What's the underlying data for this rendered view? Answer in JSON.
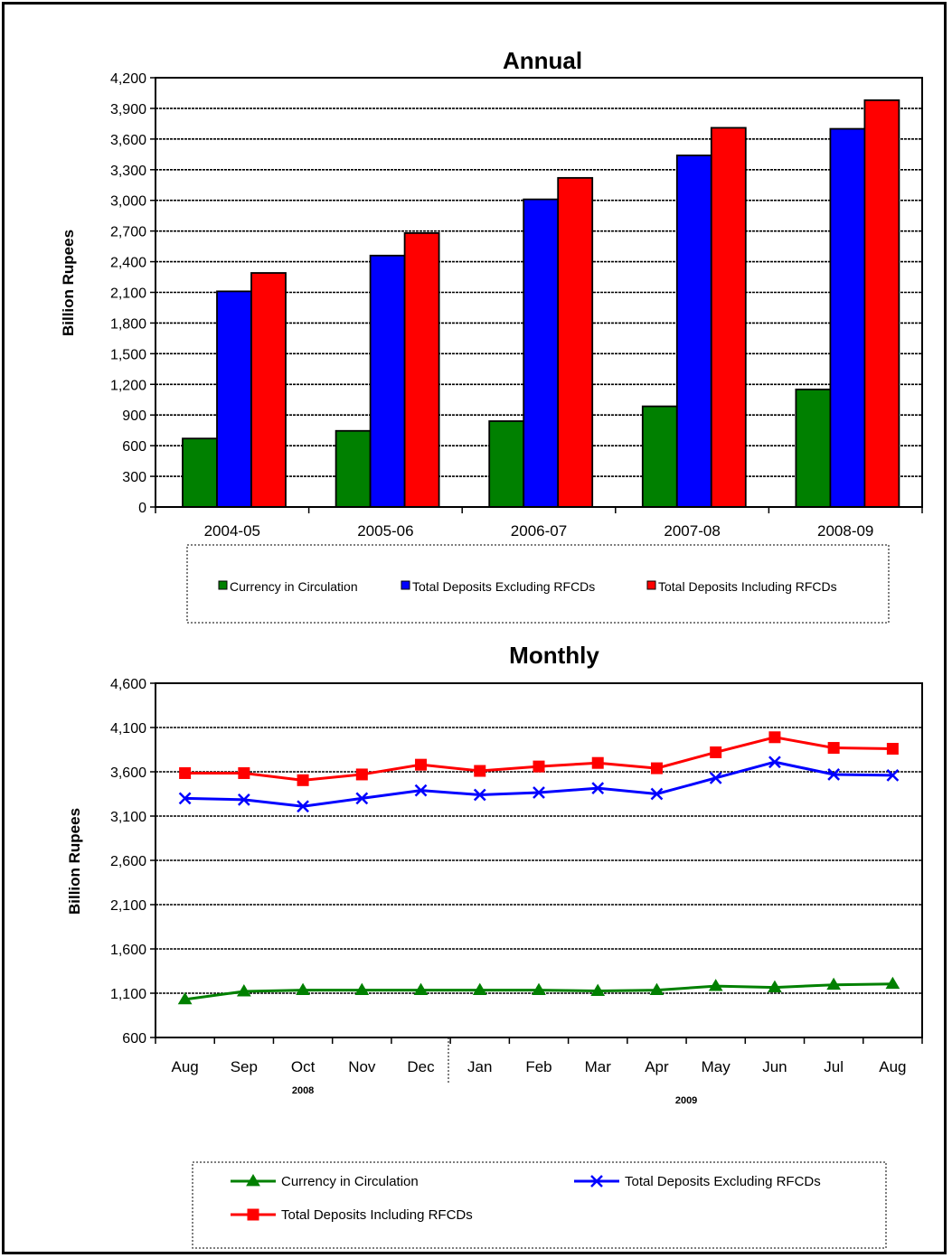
{
  "chart_data": [
    {
      "type": "bar",
      "title": "Annual",
      "ylabel": "Billion Rupees",
      "xlabel": "",
      "ylim": [
        0,
        4200
      ],
      "yticks": [
        0,
        300,
        600,
        900,
        1200,
        1500,
        1800,
        2100,
        2400,
        2700,
        3000,
        3300,
        3600,
        3900,
        4200
      ],
      "ytick_labels": [
        "0",
        "300",
        "600",
        "900",
        "1,200",
        "1,500",
        "1,800",
        "2,100",
        "2,400",
        "2,700",
        "3,000",
        "3,300",
        "3,600",
        "3,900",
        "4,200"
      ],
      "grid": true,
      "legend_position": "bottom",
      "categories": [
        "2004-05",
        "2005-06",
        "2006-07",
        "2007-08",
        "2008-09"
      ],
      "series": [
        {
          "name": "Currency in Circulation",
          "color": "#008000",
          "values": [
            670,
            745,
            840,
            985,
            1150
          ]
        },
        {
          "name": "Total Deposits Excluding RFCDs",
          "color": "#0000ff",
          "values": [
            2110,
            2460,
            3010,
            3440,
            3700
          ]
        },
        {
          "name": "Total Deposits Including RFCDs",
          "color": "#ff0000",
          "values": [
            2290,
            2680,
            3220,
            3710,
            3980
          ]
        }
      ]
    },
    {
      "type": "line",
      "title": "Monthly",
      "ylabel": "Billion Rupees",
      "xlabel": "",
      "ylim": [
        600,
        4600
      ],
      "yticks": [
        600,
        1100,
        1600,
        2100,
        2600,
        3100,
        3600,
        4100,
        4600
      ],
      "ytick_labels": [
        "600",
        "1,100",
        "1,600",
        "2,100",
        "2,600",
        "3,100",
        "3,600",
        "4,100",
        "4,600"
      ],
      "grid": true,
      "legend_position": "bottom",
      "categories": [
        "Aug",
        "Sep",
        "Oct",
        "Nov",
        "Dec",
        "Jan",
        "Feb",
        "Mar",
        "Apr",
        "May",
        "Jun",
        "Jul",
        "Aug"
      ],
      "year_groups": [
        {
          "label": "2008",
          "start": 0,
          "end": 4
        },
        {
          "label": "2009",
          "start": 5,
          "end": 12
        }
      ],
      "series": [
        {
          "name": "Currency in Circulation",
          "color": "#008000",
          "marker": "triangle",
          "values": [
            1030,
            1120,
            1135,
            1135,
            1135,
            1135,
            1135,
            1125,
            1135,
            1180,
            1165,
            1195,
            1205
          ]
        },
        {
          "name": "Total Deposits Excluding RFCDs",
          "color": "#0000ff",
          "marker": "x",
          "values": [
            3300,
            3285,
            3210,
            3300,
            3390,
            3340,
            3365,
            3415,
            3350,
            3530,
            3710,
            3570,
            3560
          ]
        },
        {
          "name": "Total Deposits Including RFCDs",
          "color": "#ff0000",
          "marker": "square",
          "values": [
            3585,
            3585,
            3505,
            3570,
            3680,
            3610,
            3660,
            3700,
            3640,
            3820,
            3990,
            3870,
            3860
          ]
        }
      ]
    }
  ]
}
